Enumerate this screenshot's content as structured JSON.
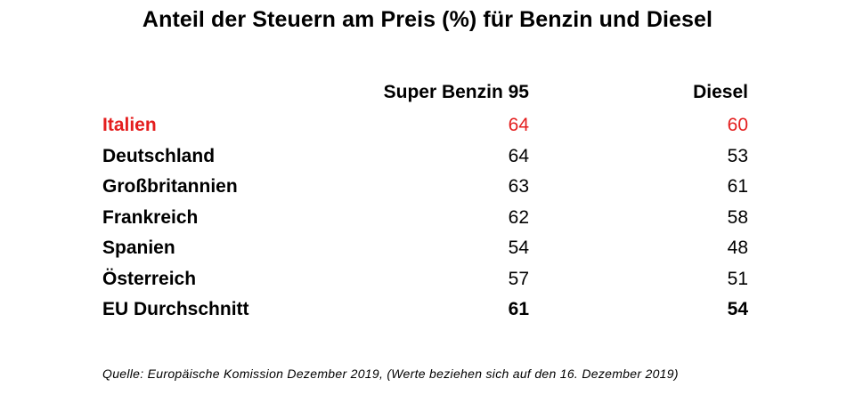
{
  "colors": {
    "highlight": "#e41e1e",
    "text": "#000000",
    "background": "#ffffff"
  },
  "chart_data": {
    "type": "table",
    "title": "Anteil der Steuern am Preis (%) für Benzin und Diesel",
    "columns": [
      "Super Benzin 95",
      "Diesel"
    ],
    "rows": [
      {
        "country": "Italien",
        "benzin": "64",
        "diesel": "60",
        "highlight": true
      },
      {
        "country": "Deutschland",
        "benzin": "64",
        "diesel": "53"
      },
      {
        "country": "Großbritannien",
        "benzin": "63",
        "diesel": "61"
      },
      {
        "country": "Frankreich",
        "benzin": "62",
        "diesel": "58"
      },
      {
        "country": "Spanien",
        "benzin": "54",
        "diesel": "48"
      },
      {
        "country": "Österreich",
        "benzin": "57",
        "diesel": "51"
      },
      {
        "country": "EU Durchschnitt",
        "benzin": "61",
        "diesel": "54",
        "bold": true
      }
    ],
    "source": "Quelle: Europäische Komission Dezember 2019, (Werte beziehen sich auf den 16. Dezember 2019)"
  }
}
